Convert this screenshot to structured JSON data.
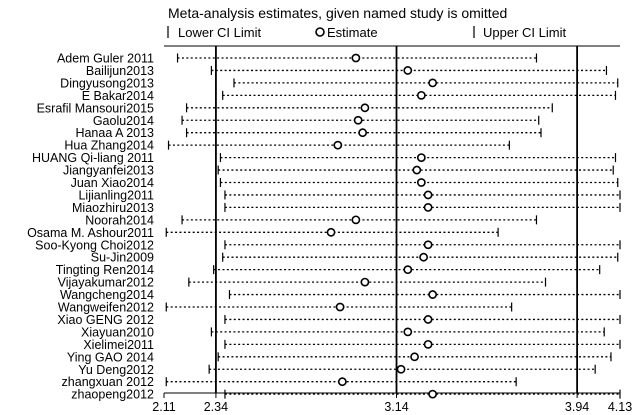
{
  "chart_data": {
    "type": "forest",
    "title": "Meta-analysis estimates, given named study is omitted",
    "legend": {
      "lower": "Lower CI Limit",
      "estimate": "Estimate",
      "upper": "Upper CI Limit"
    },
    "x_ticks": [
      2.11,
      2.34,
      3.14,
      3.94,
      4.13
    ],
    "x_tick_labels": [
      "2.11",
      "2.34",
      "3.14",
      "3.94",
      "4.13"
    ],
    "xlim": [
      2.11,
      4.13
    ],
    "reference_lines": [
      2.34,
      3.14,
      3.94
    ],
    "studies": [
      {
        "name": "Adem Guler 2011",
        "lower": 2.17,
        "estimate": 2.96,
        "upper": 3.76
      },
      {
        "name": "Bailijun2013",
        "lower": 2.32,
        "estimate": 3.19,
        "upper": 4.07
      },
      {
        "name": "Dingyusong2013",
        "lower": 2.42,
        "estimate": 3.3,
        "upper": 4.12
      },
      {
        "name": "E Bakar2014",
        "lower": 2.37,
        "estimate": 3.25,
        "upper": 4.11
      },
      {
        "name": "Esrafil Mansouri2015",
        "lower": 2.21,
        "estimate": 3.0,
        "upper": 3.83
      },
      {
        "name": "Gaolu2014",
        "lower": 2.19,
        "estimate": 2.97,
        "upper": 3.77
      },
      {
        "name": "Hanaa A 2013",
        "lower": 2.21,
        "estimate": 2.99,
        "upper": 3.78
      },
      {
        "name": "Hua Zhang2014",
        "lower": 2.13,
        "estimate": 2.88,
        "upper": 3.64
      },
      {
        "name": "HUANG Qi-liang 2011",
        "lower": 2.36,
        "estimate": 3.25,
        "upper": 4.11
      },
      {
        "name": "Jiangyanfei2013",
        "lower": 2.35,
        "estimate": 3.23,
        "upper": 4.1
      },
      {
        "name": "Juan Xiao2014",
        "lower": 2.36,
        "estimate": 3.25,
        "upper": 4.12
      },
      {
        "name": "Lijianling2011",
        "lower": 2.38,
        "estimate": 3.28,
        "upper": 4.13
      },
      {
        "name": "Miaozhiru2013",
        "lower": 2.38,
        "estimate": 3.28,
        "upper": 4.13
      },
      {
        "name": "Noorah2014",
        "lower": 2.19,
        "estimate": 2.96,
        "upper": 3.76
      },
      {
        "name": "Osama M. Ashour2011",
        "lower": 2.12,
        "estimate": 2.85,
        "upper": 3.59
      },
      {
        "name": "Soo-Kyong Choi2012",
        "lower": 2.38,
        "estimate": 3.28,
        "upper": 4.13
      },
      {
        "name": "Su-Jin2009",
        "lower": 2.37,
        "estimate": 3.26,
        "upper": 4.12
      },
      {
        "name": "Tingting Ren2014",
        "lower": 2.33,
        "estimate": 3.19,
        "upper": 4.04
      },
      {
        "name": "Vijayakumar2012",
        "lower": 2.22,
        "estimate": 3.0,
        "upper": 3.8
      },
      {
        "name": "Wangcheng2014",
        "lower": 2.4,
        "estimate": 3.3,
        "upper": 4.13
      },
      {
        "name": "Wangweifen2012",
        "lower": 2.12,
        "estimate": 2.89,
        "upper": 3.65
      },
      {
        "name": "Xiao GENG 2012",
        "lower": 2.38,
        "estimate": 3.28,
        "upper": 4.13
      },
      {
        "name": "Xiayuan2010",
        "lower": 2.32,
        "estimate": 3.19,
        "upper": 4.06
      },
      {
        "name": "Xielimei2011",
        "lower": 2.38,
        "estimate": 3.28,
        "upper": 4.13
      },
      {
        "name": "Ying GAO 2014",
        "lower": 2.35,
        "estimate": 3.22,
        "upper": 4.09
      },
      {
        "name": "Yu Deng2012",
        "lower": 2.31,
        "estimate": 3.16,
        "upper": 4.02
      },
      {
        "name": "zhangxuan 2012",
        "lower": 2.12,
        "estimate": 2.9,
        "upper": 3.67
      },
      {
        "name": "zhaopeng2012",
        "lower": 2.38,
        "estimate": 3.3,
        "upper": 4.13
      }
    ]
  }
}
